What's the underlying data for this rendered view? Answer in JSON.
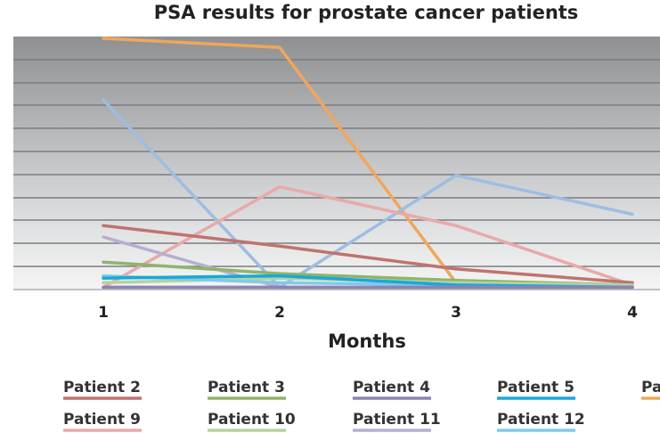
{
  "chart_data": {
    "type": "line",
    "title": "PSA results for prostate cancer patients",
    "xlabel": "Months",
    "ylabel": "",
    "x": [
      1,
      2,
      3,
      4
    ],
    "x_tick_labels": [
      "1",
      "2",
      "3",
      "4"
    ],
    "ylim": [
      0,
      11
    ],
    "y_gridlines": [
      1,
      2,
      3,
      4,
      5,
      6,
      7,
      8,
      9,
      10,
      11
    ],
    "grid": true,
    "legend_position": "bottom",
    "series": [
      {
        "name": "Patient 2",
        "color": "#c0736e",
        "values": [
          2.8,
          1.9,
          0.9,
          0.3
        ]
      },
      {
        "name": "Patient 3",
        "color": "#8fb46c",
        "values": [
          1.2,
          0.7,
          0.4,
          0.2
        ]
      },
      {
        "name": "Patient 4",
        "color": "#8f82b5",
        "values": [
          0.1,
          0.1,
          0.1,
          0.1
        ]
      },
      {
        "name": "Patient 5",
        "color": "#1aa8d8",
        "values": [
          0.5,
          0.6,
          0.2,
          0.1
        ]
      },
      {
        "name": "Pa",
        "color": "#efa75b",
        "values": [
          11.0,
          10.6,
          0.3,
          0.2
        ]
      },
      {
        "name": "Patient 9",
        "color": "#e8aaa8",
        "values": [
          0.1,
          4.5,
          2.8,
          0.2
        ]
      },
      {
        "name": "Patient 10",
        "color": "#b3d3a0",
        "values": [
          0.3,
          0.5,
          0.3,
          0.2
        ]
      },
      {
        "name": "Patient 11",
        "color": "#b8aed2",
        "values": [
          2.3,
          0.1,
          0.1,
          0.1
        ]
      },
      {
        "name": "Patient 12",
        "color": "#7fcbe8",
        "values": [
          0.6,
          0.3,
          0.2,
          0.1
        ]
      },
      {
        "name": "",
        "color": "#9dbde3",
        "values": [
          8.3,
          0.1,
          5.0,
          3.3
        ]
      }
    ]
  }
}
